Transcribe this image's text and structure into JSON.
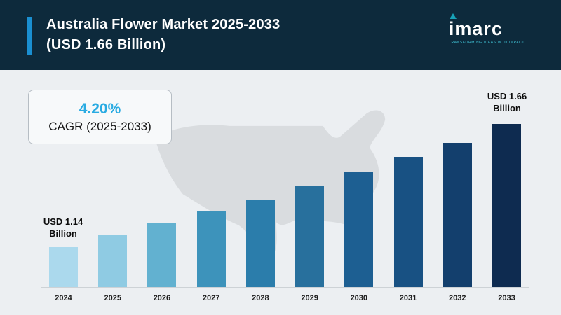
{
  "header": {
    "title_line1": "Australia Flower Market 2025-2033",
    "title_line2": "(USD 1.66 Billion)",
    "logo_text": "imarc",
    "logo_tagline": "TRANSFORMING IDEAS INTO IMPACT",
    "accent_color": "#1a8fd1",
    "background_color": "#0d2a3c"
  },
  "cagr_card": {
    "value": "4.20%",
    "label": "CAGR (2025-2033)",
    "value_color": "#29abe2"
  },
  "chart_data": {
    "type": "bar",
    "title": "Australia Flower Market 2025-2033 (USD 1.66 Billion)",
    "unit": "USD Billion",
    "categories": [
      "2024",
      "2025",
      "2026",
      "2027",
      "2028",
      "2029",
      "2030",
      "2031",
      "2032",
      "2033"
    ],
    "values": [
      1.14,
      1.19,
      1.24,
      1.29,
      1.34,
      1.4,
      1.46,
      1.52,
      1.58,
      1.66
    ],
    "ylim": [
      0.97,
      1.72
    ],
    "grid": false,
    "legend": false,
    "bar_colors": [
      "#abd9ed",
      "#8fcbe3",
      "#62b1d0",
      "#3d93bb",
      "#2b7dab",
      "#28709d",
      "#1d5f92",
      "#185183",
      "#133f6d",
      "#0e2b50"
    ],
    "annotations": {
      "first": {
        "line1": "USD 1.14",
        "line2": "Billion"
      },
      "last": {
        "line1": "USD 1.66",
        "line2": "Billion"
      }
    }
  }
}
